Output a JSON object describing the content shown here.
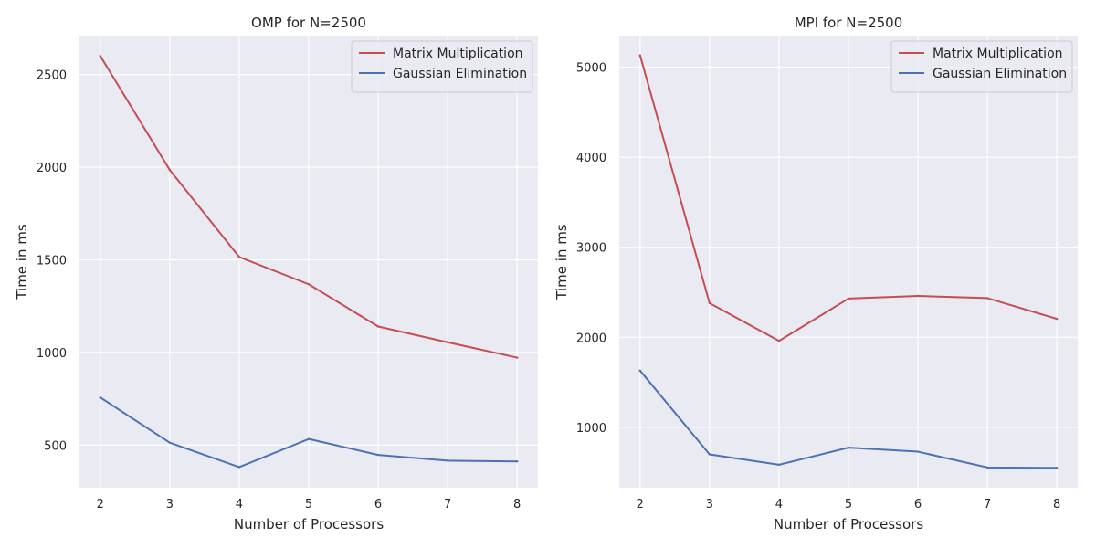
{
  "colors": {
    "plot_background": "#eaeaf2",
    "grid": "#ffffff",
    "matrix_series": "#c44e52",
    "gaussian_series": "#4c72b0",
    "text": "#262626"
  },
  "chart_data": [
    {
      "type": "line",
      "title": "OMP for N=2500",
      "xlabel": "Number of Processors",
      "ylabel": "Time in ms",
      "x": [
        2,
        3,
        4,
        5,
        6,
        7,
        8
      ],
      "xlim": [
        1.7,
        8.3
      ],
      "ylim": [
        270,
        2710
      ],
      "xticks": [
        2,
        3,
        4,
        5,
        6,
        7,
        8
      ],
      "yticks": [
        500,
        1000,
        1500,
        2000,
        2500
      ],
      "grid": true,
      "legend_position": "top-right",
      "series": [
        {
          "name": "Matrix Multiplication",
          "color": "#c44e52",
          "values": [
            2600,
            1985,
            1515,
            1368,
            1140,
            1055,
            972
          ]
        },
        {
          "name": "Gaussian Elimination",
          "color": "#4c72b0",
          "values": [
            757,
            513,
            381,
            533,
            447,
            416,
            412
          ]
        }
      ]
    },
    {
      "type": "line",
      "title": "MPI for N=2500",
      "xlabel": "Number of Processors",
      "ylabel": "Time in ms",
      "x": [
        2,
        3,
        4,
        5,
        6,
        7,
        8
      ],
      "xlim": [
        1.7,
        8.3
      ],
      "ylim": [
        330,
        5350
      ],
      "xticks": [
        2,
        3,
        4,
        5,
        6,
        7,
        8
      ],
      "yticks": [
        1000,
        2000,
        3000,
        4000,
        5000
      ],
      "grid": true,
      "legend_position": "top-right",
      "series": [
        {
          "name": "Matrix Multiplication",
          "color": "#c44e52",
          "values": [
            5130,
            2380,
            1960,
            2430,
            2460,
            2435,
            2205
          ]
        },
        {
          "name": "Gaussian Elimination",
          "color": "#4c72b0",
          "values": [
            1630,
            700,
            585,
            775,
            730,
            555,
            550
          ]
        }
      ]
    }
  ]
}
